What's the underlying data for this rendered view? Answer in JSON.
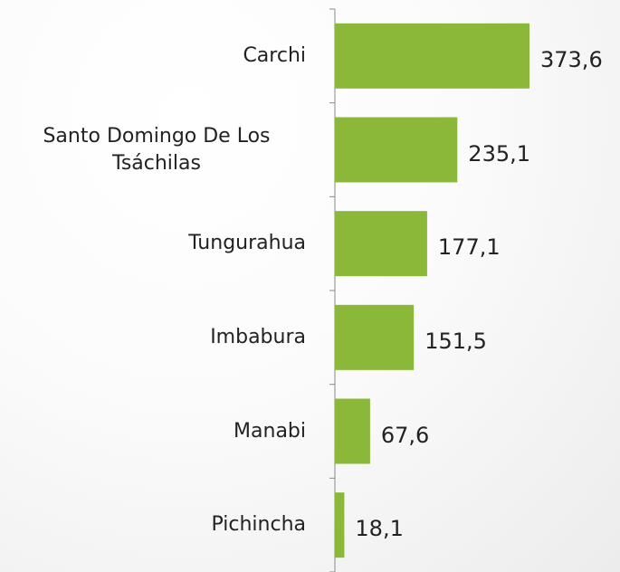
{
  "chart_data": {
    "type": "bar",
    "orientation": "horizontal",
    "categories": [
      "Carchi",
      "Santo Domingo De Los Tsáchilas",
      "Tungurahua",
      "Imbabura",
      "Manabi",
      "Pichincha"
    ],
    "values": [
      373.6,
      235.1,
      177.1,
      151.5,
      67.6,
      18.1
    ],
    "value_labels": [
      "373,6",
      "235,1",
      "177,1",
      "151,5",
      "67,6",
      "18,1"
    ],
    "color": "#8cb83a"
  }
}
